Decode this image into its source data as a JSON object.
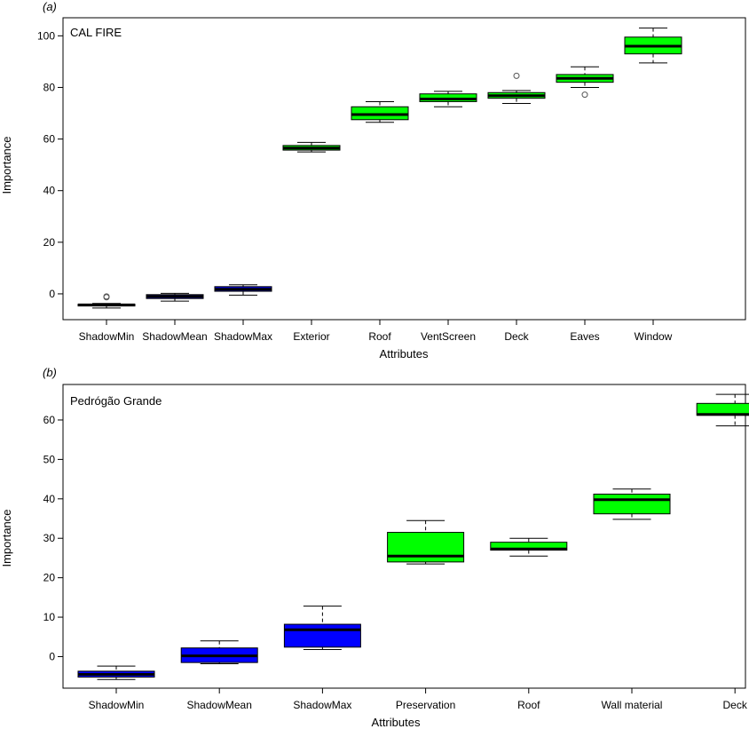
{
  "chart_data": [
    {
      "panel": "(a)",
      "type": "boxplot",
      "inset_label": "CAL FIRE",
      "xlabel": "Attributes",
      "ylabel": "Importance",
      "ylim": [
        -10,
        107
      ],
      "yticks": [
        0,
        20,
        40,
        60,
        80,
        100
      ],
      "grid": false,
      "categories": [
        "ShadowMin",
        "ShadowMean",
        "ShadowMax",
        "Exterior",
        "Roof",
        "VentScreen",
        "Deck",
        "Eaves",
        "Window"
      ],
      "boxes": [
        {
          "min": -5.5,
          "q1": -4.7,
          "median": -4.3,
          "q3": -4.0,
          "max": -3.7,
          "outliers": [
            -1.0,
            -1.3
          ],
          "color": "#0000ff"
        },
        {
          "min": -2.8,
          "q1": -1.8,
          "median": -1.0,
          "q3": -0.3,
          "max": 0.2,
          "outliers": [],
          "color": "#0000ff"
        },
        {
          "min": -0.5,
          "q1": 1.0,
          "median": 1.8,
          "q3": 2.8,
          "max": 3.5,
          "outliers": [],
          "color": "#0000ff"
        },
        {
          "min": 55.0,
          "q1": 55.7,
          "median": 56.5,
          "q3": 57.5,
          "max": 58.7,
          "outliers": [],
          "color": "#00ff00"
        },
        {
          "min": 66.5,
          "q1": 67.5,
          "median": 69.5,
          "q3": 72.5,
          "max": 74.5,
          "outliers": [],
          "color": "#00ff00"
        },
        {
          "min": 72.5,
          "q1": 74.5,
          "median": 75.5,
          "q3": 77.5,
          "max": 78.5,
          "outliers": [],
          "color": "#00ff00"
        },
        {
          "min": 73.8,
          "q1": 75.8,
          "median": 76.8,
          "q3": 78.0,
          "max": 78.8,
          "outliers": [
            84.5
          ],
          "color": "#00ff00"
        },
        {
          "min": 80.0,
          "q1": 82.0,
          "median": 83.5,
          "q3": 85.0,
          "max": 88.0,
          "outliers": [
            77.2
          ],
          "color": "#00ff00"
        },
        {
          "min": 89.5,
          "q1": 93.0,
          "median": 96.0,
          "q3": 99.5,
          "max": 103.0,
          "outliers": [],
          "color": "#00ff00"
        }
      ]
    },
    {
      "panel": "(b)",
      "type": "boxplot",
      "inset_label": "Pedrógão Grande",
      "xlabel": "Attributes",
      "ylabel": "Importance",
      "ylim": [
        -8,
        69
      ],
      "yticks": [
        0,
        10,
        20,
        30,
        40,
        50,
        60
      ],
      "grid": false,
      "categories": [
        "ShadowMin",
        "ShadowMean",
        "ShadowMax",
        "Preservation",
        "Roof",
        "Wall material",
        "Deck"
      ],
      "boxes": [
        {
          "min": -5.8,
          "q1": -5.2,
          "median": -4.5,
          "q3": -3.7,
          "max": -2.4,
          "outliers": [],
          "color": "#0000ff"
        },
        {
          "min": -1.8,
          "q1": -1.5,
          "median": 0.2,
          "q3": 2.2,
          "max": 4.0,
          "outliers": [],
          "color": "#0000ff"
        },
        {
          "min": 1.8,
          "q1": 2.4,
          "median": 6.8,
          "q3": 8.2,
          "max": 12.8,
          "outliers": [],
          "color": "#0000ff"
        },
        {
          "min": 23.5,
          "q1": 24.0,
          "median": 25.5,
          "q3": 31.5,
          "max": 34.5,
          "outliers": [],
          "color": "#00ff00"
        },
        {
          "min": 25.5,
          "q1": 27.0,
          "median": 27.3,
          "q3": 29.0,
          "max": 30.0,
          "outliers": [],
          "color": "#00ff00"
        },
        {
          "min": 34.8,
          "q1": 36.2,
          "median": 39.8,
          "q3": 41.2,
          "max": 42.5,
          "outliers": [],
          "color": "#00ff00"
        },
        {
          "min": 58.5,
          "q1": 61.2,
          "median": 61.4,
          "q3": 64.2,
          "max": 66.5,
          "outliers": [],
          "color": "#00ff00"
        }
      ]
    }
  ]
}
